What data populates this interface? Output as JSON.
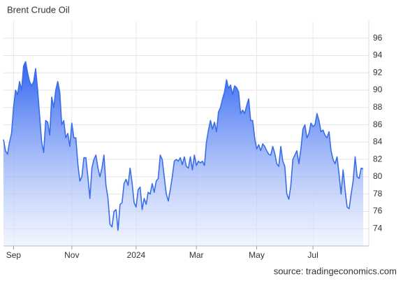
{
  "chart_data": {
    "type": "line",
    "title": "Brent Crude Oil",
    "source": "source: tradingeconomics.com",
    "color": "#3a6ee8",
    "grid": true,
    "ylim": [
      72,
      98
    ],
    "yticks": [
      74,
      76,
      78,
      80,
      82,
      84,
      86,
      88,
      90,
      92,
      94,
      96
    ],
    "categories": [
      null,
      null,
      null,
      null,
      null,
      "Sep",
      null,
      null,
      null,
      null,
      null,
      null,
      null,
      null,
      null,
      null,
      null,
      null,
      null,
      null,
      null,
      null,
      null,
      null,
      null,
      null,
      null,
      null,
      null,
      null,
      null,
      null,
      null,
      null,
      "Nov",
      null,
      null,
      null,
      null,
      null,
      null,
      null,
      null,
      null,
      null,
      null,
      null,
      null,
      null,
      null,
      null,
      null,
      null,
      null,
      null,
      null,
      null,
      null,
      null,
      null,
      null,
      null,
      null,
      null,
      null,
      null,
      "2024",
      null,
      null,
      null,
      null,
      null,
      null,
      null,
      null,
      null,
      null,
      null,
      null,
      null,
      null,
      null,
      null,
      null,
      null,
      null,
      null,
      null,
      null,
      null,
      null,
      null,
      null,
      null,
      null,
      null,
      "Mar",
      null,
      null,
      null,
      null,
      null,
      null,
      null,
      null,
      null,
      null,
      null,
      null,
      null,
      null,
      null,
      null,
      null,
      null,
      null,
      null,
      null,
      null,
      null,
      null,
      null,
      null,
      null,
      null,
      null,
      "May",
      null,
      null,
      null,
      null,
      null,
      null,
      null,
      null,
      null,
      null,
      null,
      null,
      null,
      null,
      null,
      null,
      null,
      null,
      null,
      null,
      null,
      null,
      null,
      null,
      null,
      null,
      null,
      "Jul",
      null,
      null,
      null,
      null,
      null,
      null,
      null,
      null,
      null,
      null,
      null,
      null,
      null,
      null,
      null,
      null,
      null,
      null,
      null,
      null,
      null,
      null,
      null,
      null,
      null
    ],
    "values": [
      84.3,
      83,
      82.6,
      84,
      85,
      88,
      90,
      89.5,
      91,
      90,
      92.8,
      93.3,
      92,
      91,
      90.5,
      91,
      92.5,
      90,
      87,
      84,
      82.8,
      86.5,
      86.3,
      84.8,
      89.2,
      88,
      90,
      91,
      89.8,
      86,
      86.5,
      84.5,
      85,
      83.5,
      86.2,
      84.5,
      84.5,
      81.5,
      79.5,
      80,
      82.2,
      82.2,
      80,
      77.5,
      81,
      82,
      82.5,
      81,
      80,
      81,
      82.5,
      79,
      77.5,
      74.5,
      74.2,
      76,
      76.2,
      73.8,
      76.8,
      77,
      79.2,
      79.7,
      79,
      81,
      79.3,
      77,
      76.5,
      78.5,
      78.8,
      76.2,
      77.5,
      76.8,
      78.2,
      78,
      79.2,
      78.2,
      79.5,
      79.8,
      82.5,
      82,
      80,
      78,
      77.2,
      78.5,
      80,
      81.8,
      82,
      81.8,
      82.2,
      81.4,
      82.3,
      81.2,
      81,
      82.3,
      80.8,
      82.5,
      81.3,
      81.8,
      81.6,
      81.8,
      81.3,
      84,
      85.4,
      86.5,
      85.5,
      86.3,
      85.2,
      87.5,
      88,
      89,
      89.8,
      91.2,
      90.2,
      90.6,
      89.5,
      90.5,
      90.3,
      89.8,
      87.3,
      87.7,
      87.3,
      88.2,
      89,
      86.5,
      86.5,
      84.5,
      83.2,
      83.7,
      83,
      83.8,
      83.5,
      83,
      82.6,
      82.5,
      83.5,
      82.7,
      81.5,
      81.2,
      83.5,
      81.8,
      81.2,
      78,
      77.4,
      79,
      82,
      82.5,
      83,
      81.5,
      83.2,
      85.5,
      86,
      84.5,
      85,
      86.2,
      85.8,
      86,
      87.3,
      86.5,
      85.2,
      85.4,
      84.8,
      84.5,
      85.2,
      83,
      82,
      81.5,
      82.3,
      80.3,
      78,
      80.8,
      78.5,
      76.5,
      76.3,
      78,
      79.5,
      82.3,
      80,
      79.8,
      81,
      80.9
    ]
  }
}
